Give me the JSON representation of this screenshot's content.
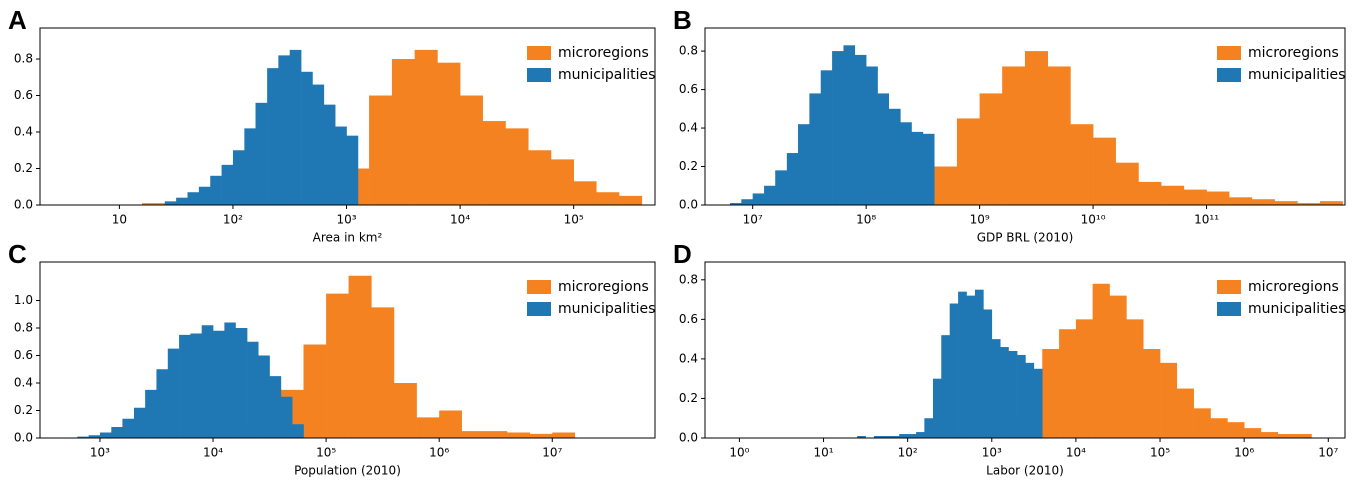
{
  "chart_data": [
    {
      "type": "histogram",
      "panel_label": "A",
      "x_label": "Area in km²",
      "log_x": true,
      "legend": "upper right",
      "xlim": [
        2,
        520000
      ],
      "xticks": [
        10,
        {
          "value": 100,
          "label": "10²"
        },
        {
          "value": 1000,
          "label": "10³"
        },
        {
          "value": 10000,
          "label": "10⁴"
        },
        {
          "value": 100000,
          "label": "10⁵"
        }
      ],
      "ylim": [
        0,
        0.97
      ],
      "yticks": [
        {
          "value": 0,
          "label": "0.0"
        },
        0.2,
        0.4,
        0.6,
        0.8
      ],
      "series": [
        {
          "name": "microregions",
          "color": "#f58220",
          "bins": [
            15.8,
            25.1,
            39.8,
            63.1,
            100,
            158,
            251,
            398,
            631,
            1000,
            1580,
            2510,
            3980,
            6310,
            10000,
            15800,
            25100,
            39800,
            63100,
            100000,
            158000,
            251000,
            398000
          ],
          "values": [
            0.01,
            0.01,
            0.01,
            0.01,
            0.01,
            0.02,
            0.02,
            0.02,
            0.05,
            0.2,
            0.6,
            0.8,
            0.85,
            0.78,
            0.6,
            0.46,
            0.42,
            0.3,
            0.25,
            0.13,
            0.07,
            0.05
          ]
        },
        {
          "name": "municipalities",
          "color": "#1f77b4",
          "bins": [
            25.1,
            31.6,
            39.8,
            50.1,
            63.1,
            79.4,
            100,
            126,
            158,
            200,
            251,
            316,
            398,
            501,
            631,
            794,
            1000,
            1260
          ],
          "values": [
            0.02,
            0.04,
            0.07,
            0.1,
            0.16,
            0.22,
            0.3,
            0.42,
            0.56,
            0.75,
            0.82,
            0.85,
            0.73,
            0.66,
            0.55,
            0.43,
            0.38
          ]
        }
      ]
    },
    {
      "type": "histogram",
      "panel_label": "B",
      "x_label": "GDP BRL (2010)",
      "log_x": true,
      "legend": "upper right",
      "xlim": [
        3800000.0,
        1660000000000.0
      ],
      "xticks": [
        {
          "value": 10000000.0,
          "label": "10⁷"
        },
        {
          "value": 100000000.0,
          "label": "10⁸"
        },
        {
          "value": 1000000000.0,
          "label": "10⁹"
        },
        {
          "value": 10000000000.0,
          "label": "10¹⁰"
        },
        {
          "value": 100000000000.0,
          "label": "10¹¹"
        }
      ],
      "ylim": [
        0,
        0.92
      ],
      "yticks": [
        {
          "value": 0,
          "label": "0.0"
        },
        0.2,
        0.4,
        0.6,
        0.8
      ],
      "series": [
        {
          "name": "microregions",
          "color": "#f58220",
          "bins": [
            25100000.0,
            39800000.0,
            63100000.0,
            100000000.0,
            158000000.0,
            251000000.0,
            398000000.0,
            631000000.0,
            1000000000.0,
            1580000000.0,
            2510000000.0,
            3980000000.0,
            6310000000.0,
            10000000000.0,
            15800000000.0,
            25100000000.0,
            39800000000.0,
            63100000000.0,
            100000000000.0,
            158000000000.0,
            251000000000.0,
            398000000000.0,
            631000000000.0,
            1000000000000.0,
            1580000000000.0
          ],
          "values": [
            0.01,
            0.01,
            0.01,
            0.02,
            0.03,
            0.08,
            0.2,
            0.45,
            0.58,
            0.72,
            0.8,
            0.72,
            0.42,
            0.35,
            0.22,
            0.12,
            0.1,
            0.08,
            0.07,
            0.04,
            0.03,
            0.02,
            0.01,
            0.02
          ]
        },
        {
          "name": "municipalities",
          "color": "#1f77b4",
          "bins": [
            6310000.0,
            7940000.0,
            10000000.0,
            12600000.0,
            15800000.0,
            20000000.0,
            25100000.0,
            31600000.0,
            39800000.0,
            50100000.0,
            63100000.0,
            79400000.0,
            100000000.0,
            126000000.0,
            158000000.0,
            200000000.0,
            251000000.0,
            316000000.0,
            398000000.0
          ],
          "values": [
            0.01,
            0.03,
            0.06,
            0.1,
            0.18,
            0.27,
            0.42,
            0.58,
            0.7,
            0.8,
            0.83,
            0.78,
            0.72,
            0.58,
            0.5,
            0.43,
            0.38,
            0.37
          ]
        }
      ]
    },
    {
      "type": "histogram",
      "panel_label": "C",
      "x_label": "Population (2010)",
      "log_x": true,
      "legend": "upper right",
      "xlim": [
        295,
        81000000.0
      ],
      "xticks": [
        {
          "value": 1000,
          "label": "10³"
        },
        {
          "value": 10000,
          "label": "10⁴"
        },
        {
          "value": 100000,
          "label": "10⁵"
        },
        {
          "value": 1000000.0,
          "label": "10⁶"
        },
        {
          "value": 10000000.0,
          "label": "10⁷"
        }
      ],
      "ylim": [
        0,
        1.28
      ],
      "yticks": [
        {
          "value": 0,
          "label": "0.0"
        },
        0.2,
        0.4,
        0.6,
        0.8,
        {
          "value": 1,
          "label": "1.0"
        }
      ],
      "series": [
        {
          "name": "microregions",
          "color": "#f58220",
          "bins": [
            1580,
            2510,
            3980,
            6310,
            10000.0,
            15800.0,
            25100.0,
            39800.0,
            63100.0,
            100000.0,
            158000.0,
            251000.0,
            398000.0,
            631000.0,
            1000000.0,
            1580000.0,
            2510000.0,
            3980000.0,
            6310000.0,
            10000000.0,
            15800000.0
          ],
          "values": [
            0.02,
            0.02,
            0.02,
            0.02,
            0.02,
            0.08,
            0.2,
            0.35,
            0.68,
            1.05,
            1.18,
            0.95,
            0.4,
            0.15,
            0.2,
            0.05,
            0.05,
            0.04,
            0.03,
            0.04
          ]
        },
        {
          "name": "municipalities",
          "color": "#1f77b4",
          "bins": [
            631,
            794,
            1000,
            1260,
            1580,
            2000,
            2510,
            3160,
            3980,
            5010,
            6310,
            7940,
            10000,
            12600,
            15800,
            20000,
            25100,
            31600,
            39800,
            50100,
            63100
          ],
          "values": [
            0.01,
            0.02,
            0.04,
            0.08,
            0.14,
            0.22,
            0.35,
            0.5,
            0.65,
            0.75,
            0.76,
            0.82,
            0.78,
            0.84,
            0.8,
            0.7,
            0.6,
            0.45,
            0.3,
            0.1
          ]
        }
      ]
    },
    {
      "type": "histogram",
      "panel_label": "D",
      "x_label": "Labor (2010)",
      "log_x": true,
      "legend": "upper right",
      "xlim": [
        0.39,
        15800000.0
      ],
      "xticks": [
        {
          "value": 1,
          "label": "10⁰"
        },
        {
          "value": 10,
          "label": "10¹"
        },
        {
          "value": 100,
          "label": "10²"
        },
        {
          "value": 1000,
          "label": "10³"
        },
        {
          "value": 10000,
          "label": "10⁴"
        },
        {
          "value": 100000,
          "label": "10⁵"
        },
        {
          "value": 1000000.0,
          "label": "10⁶"
        },
        {
          "value": 10000000.0,
          "label": "10⁷"
        }
      ],
      "ylim": [
        0,
        0.89
      ],
      "yticks": [
        {
          "value": 0,
          "label": "0.0"
        },
        0.2,
        0.4,
        0.6,
        0.8
      ],
      "series": [
        {
          "name": "microregions",
          "color": "#f58220",
          "bins": [
            251,
            398,
            631,
            1000,
            1580,
            2510,
            3980,
            6310,
            10000.0,
            15800.0,
            25100.0,
            39800.0,
            63100.0,
            100000.0,
            158000.0,
            251000.0,
            398000.0,
            631000.0,
            1000000.0,
            1580000.0,
            2510000.0,
            3980000.0,
            6310000.0
          ],
          "values": [
            0.01,
            0.02,
            0.03,
            0.05,
            0.1,
            0.25,
            0.45,
            0.55,
            0.6,
            0.78,
            0.72,
            0.6,
            0.45,
            0.38,
            0.25,
            0.15,
            0.1,
            0.08,
            0.05,
            0.03,
            0.02,
            0.02
          ]
        },
        {
          "name": "municipalities",
          "color": "#1f77b4",
          "bins": [
            25.1,
            31.6,
            39.8,
            50.1,
            63.1,
            79.4,
            100,
            126,
            158,
            200,
            251,
            316,
            398,
            501,
            631,
            794,
            1000,
            1260,
            1580,
            2000,
            2510,
            3160,
            3980
          ],
          "values": [
            0.01,
            0,
            0.01,
            0.01,
            0.01,
            0.02,
            0.02,
            0.03,
            0.1,
            0.3,
            0.52,
            0.68,
            0.74,
            0.72,
            0.75,
            0.65,
            0.5,
            0.46,
            0.44,
            0.42,
            0.38,
            0.35
          ]
        }
      ]
    }
  ]
}
